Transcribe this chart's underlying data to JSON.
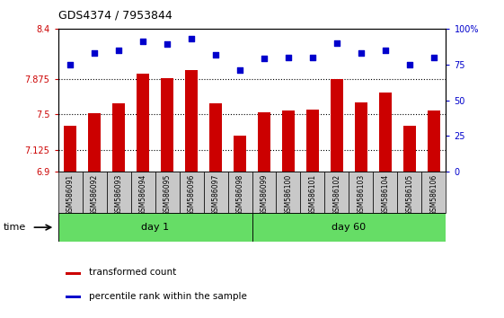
{
  "title": "GDS4374 / 7953844",
  "samples": [
    "GSM586091",
    "GSM586092",
    "GSM586093",
    "GSM586094",
    "GSM586095",
    "GSM586096",
    "GSM586097",
    "GSM586098",
    "GSM586099",
    "GSM586100",
    "GSM586101",
    "GSM586102",
    "GSM586103",
    "GSM586104",
    "GSM586105",
    "GSM586106"
  ],
  "red_values": [
    7.38,
    7.51,
    7.62,
    7.93,
    7.88,
    7.97,
    7.62,
    7.28,
    7.52,
    7.54,
    7.55,
    7.87,
    7.63,
    7.73,
    7.38,
    7.54
  ],
  "blue_values": [
    75,
    83,
    85,
    91,
    89,
    93,
    82,
    71,
    79,
    80,
    80,
    90,
    83,
    85,
    75,
    80
  ],
  "ylim_left": [
    6.9,
    8.4
  ],
  "ylim_right": [
    0,
    100
  ],
  "yticks_left": [
    6.9,
    7.125,
    7.5,
    7.875,
    8.4
  ],
  "yticks_right": [
    0,
    25,
    50,
    75,
    100
  ],
  "ytick_labels_left": [
    "6.9",
    "7.125",
    "7.5",
    "7.875",
    "8.4"
  ],
  "ytick_labels_right": [
    "0",
    "25",
    "50",
    "75",
    "100%"
  ],
  "hlines": [
    7.125,
    7.5,
    7.875
  ],
  "day1_samples": 8,
  "day60_samples": 8,
  "day1_label": "day 1",
  "day60_label": "day 60",
  "time_label": "time",
  "legend_red": "transformed count",
  "legend_blue": "percentile rank within the sample",
  "red_color": "#cc0000",
  "blue_color": "#0000cc",
  "green_color": "#66dd66",
  "bar_width": 0.55,
  "dot_size": 18,
  "background_color": "#ffffff",
  "plot_bg_color": "#ffffff",
  "group_box_color": "#c8c8c8",
  "hline_color": "#000000"
}
